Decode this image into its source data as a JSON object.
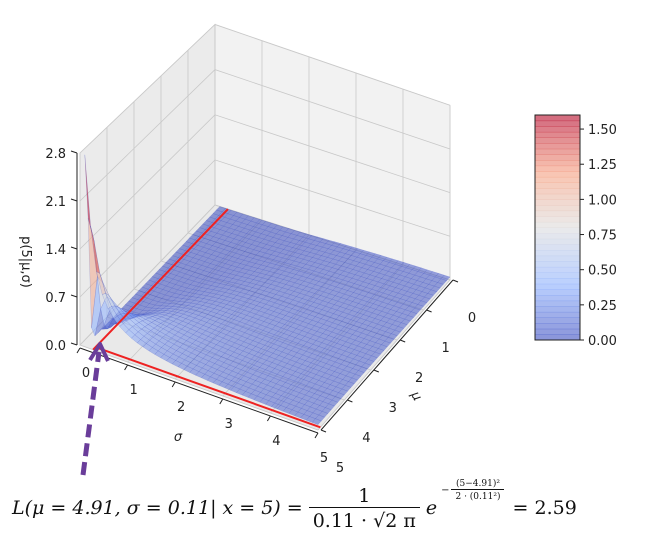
{
  "chart_data": {
    "type": "surface3d",
    "function": "normal pdf of x=5 given mu, sigma",
    "x": 5,
    "xlabel": "σ",
    "ylabel": "μ",
    "zlabel": "p(5|μ,σ)",
    "sigma_ticks": [
      "0",
      "1",
      "2",
      "3",
      "4",
      "5"
    ],
    "mu_ticks": [
      "0",
      "1",
      "2",
      "3",
      "4",
      "5"
    ],
    "z_ticks": [
      "0.0",
      "0.7",
      "1.4",
      "2.1",
      "2.8"
    ],
    "sigma_range": [
      0,
      5
    ],
    "mu_range": [
      0,
      5
    ],
    "zlim": [
      0,
      2.8
    ],
    "colormap": "coolwarm",
    "colorbar": {
      "ticks": [
        "0.00",
        "0.25",
        "0.50",
        "0.75",
        "1.00",
        "1.25",
        "1.50"
      ],
      "range": [
        0,
        1.6
      ]
    },
    "highlight": {
      "mu": 4.91,
      "sigma": 0.11,
      "value": 2.59,
      "line_color": "#ee2222"
    },
    "arrow_color": "#6a3d9a",
    "grid": true
  },
  "formula": {
    "lhs_L": "L(",
    "mu_part": "μ = 4.91,",
    "sigma_part": "σ = 0.11",
    "given": "| x = 5)",
    "eq1": "=",
    "num": "1",
    "den": "0.11 · √2 π",
    "e": "e",
    "exp_sign": "−",
    "exp_num": "(5−4.91)²",
    "exp_den": "2 · (0.11²)",
    "eq2": "=",
    "result": "2.59"
  }
}
